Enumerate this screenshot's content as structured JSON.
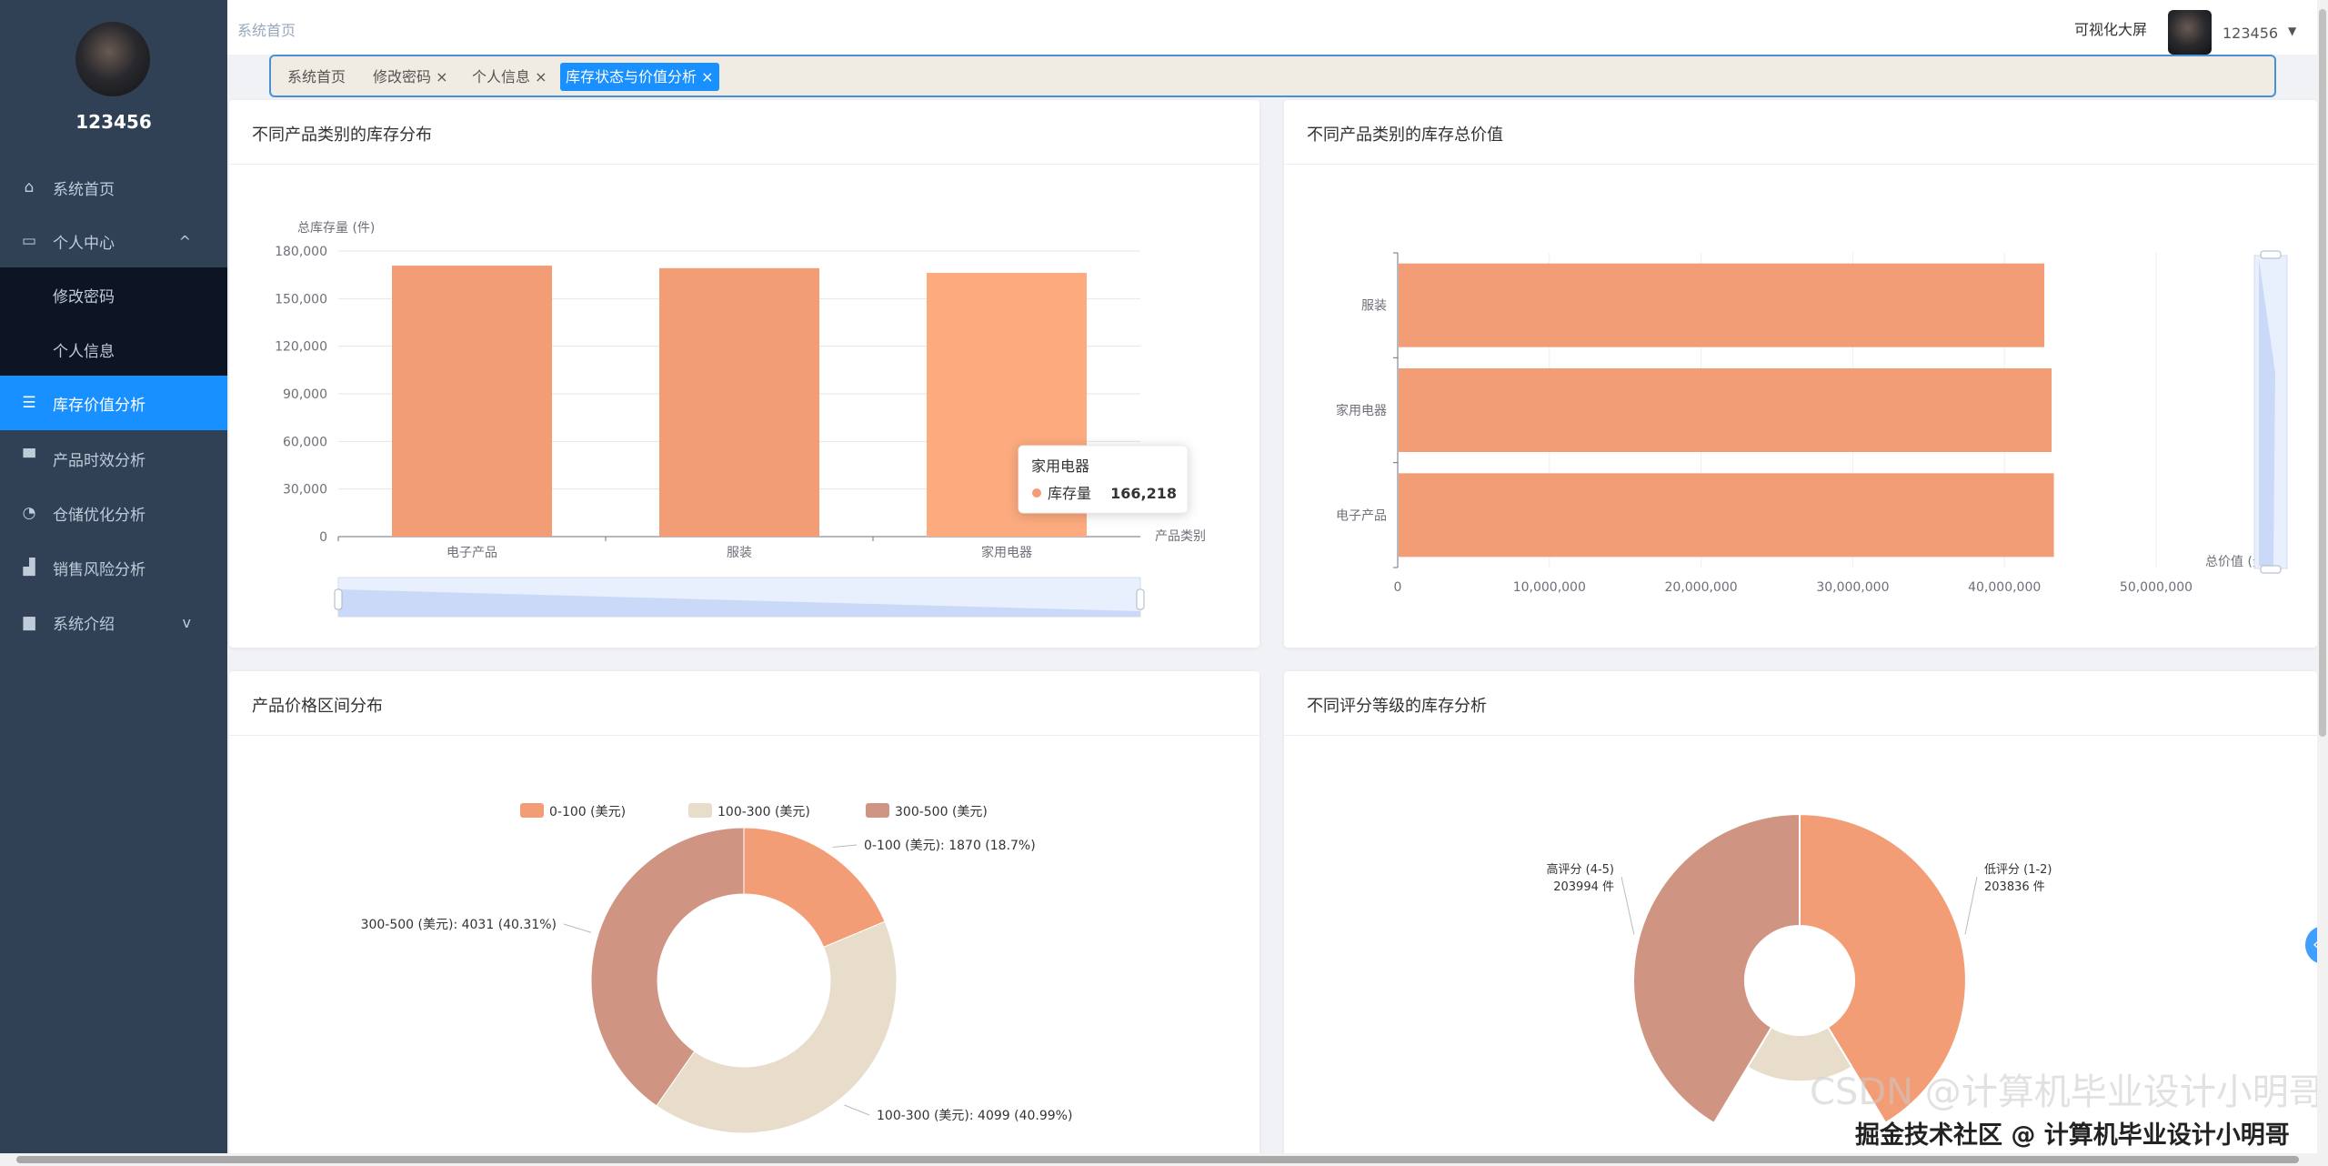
{
  "sidebar": {
    "username": "123456",
    "items": [
      {
        "label": "系统首页",
        "icon": "home-icon",
        "glyph": "⌂"
      },
      {
        "label": "个人中心",
        "icon": "user-card-icon",
        "glyph": "▭",
        "arrow": "^"
      },
      {
        "label": "修改密码",
        "sub": true
      },
      {
        "label": "个人信息",
        "sub": true
      },
      {
        "label": "库存价值分析",
        "icon": "list-icon",
        "glyph": "☰",
        "active": true
      },
      {
        "label": "产品时效分析",
        "icon": "comment-icon",
        "glyph": "▀"
      },
      {
        "label": "仓储优化分析",
        "icon": "gauge-icon",
        "glyph": "◔"
      },
      {
        "label": "销售风险分析",
        "icon": "chart-icon",
        "glyph": "▟"
      },
      {
        "label": "系统介绍",
        "icon": "briefcase-icon",
        "glyph": "▆",
        "arrow": "v"
      }
    ]
  },
  "header": {
    "breadcrumb": "系统首页",
    "visual_screen": "可视化大屏",
    "username": "123456",
    "caret": "▼"
  },
  "tabs": [
    {
      "label": "系统首页"
    },
    {
      "label": "修改密码 ×"
    },
    {
      "label": "个人信息 ×"
    },
    {
      "label": "库存状态与价值分析 ×",
      "active": true
    }
  ],
  "colors": {
    "orange": "#f39d77",
    "beige": "#e8dccb",
    "brown": "#d09483",
    "accent": "#1890ff"
  },
  "cards": {
    "c1": {
      "title": "不同产品类别的库存分布"
    },
    "c2": {
      "title": "不同产品类别的库存总价值"
    },
    "c3": {
      "title": "产品价格区间分布"
    },
    "c4": {
      "title": "不同评分等级的库存分析"
    }
  },
  "chart_data": [
    {
      "type": "bar",
      "ylabel": "总库存量 (件)",
      "xlabel": "产品类别",
      "categories": [
        "电子产品",
        "服装",
        "家用电器"
      ],
      "values": [
        170800,
        169200,
        166218
      ],
      "ylim": [
        0,
        180000
      ],
      "yticks": [
        "0",
        "30,000",
        "60,000",
        "90,000",
        "120,000",
        "150,000",
        "180,000"
      ],
      "grid": true,
      "tooltip": {
        "title": "家用电器",
        "series": "库存量",
        "value": "166,218"
      }
    },
    {
      "type": "bar",
      "orientation": "horizontal",
      "xlabel": "总价值 (元)",
      "categories": [
        "电子产品",
        "家用电器",
        "服装"
      ],
      "values": [
        43200000,
        43050000,
        42570000
      ],
      "xlim": [
        0,
        50000000
      ],
      "xticks": [
        "0",
        "10,000,000",
        "20,000,000",
        "30,000,000",
        "40,000,000",
        "50,000,000"
      ],
      "grid": true
    },
    {
      "type": "pie",
      "donut": true,
      "legend": [
        "0-100 (美元)",
        "100-300 (美元)",
        "300-500 (美元)"
      ],
      "legend_placement": "top",
      "slices": [
        {
          "name": "0-100 (美元)",
          "value": 1870,
          "label": "0-100 (美元): 1870 (18.7%)"
        },
        {
          "name": "100-300 (美元)",
          "value": 4099,
          "label": "100-300 (美元): 4099 (40.99%)"
        },
        {
          "name": "300-500 (美元)",
          "value": 4031,
          "label": "300-500 (美元): 4031 (40.31%)"
        }
      ]
    },
    {
      "type": "pie",
      "rose": true,
      "slices": [
        {
          "name": "低评分 (1-2)",
          "value": 203836,
          "label": "低评分 (1-2)",
          "label2": "203836 件"
        },
        {
          "value": 85000
        },
        {
          "name": "高评分 (4-5)",
          "value": 203994,
          "label": "高评分 (4-5)",
          "label2": "203994 件"
        }
      ]
    }
  ],
  "watermark": {
    "csdn": "CSDN @计算机毕业设计小明哥",
    "juejin": "掘金技术社区 @ 计算机毕业设计小明哥"
  }
}
